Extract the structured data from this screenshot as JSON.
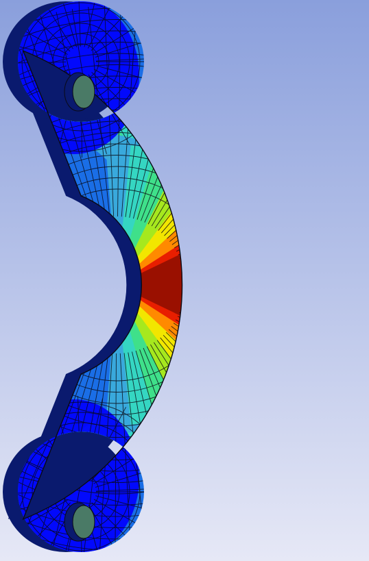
{
  "viewport": {
    "background_top": "#8a9fdc",
    "background_bottom": "#e6e8f6"
  },
  "model": {
    "part": "c-shaped-clamp",
    "mesh": "quad-mesh",
    "edge_color": "#0a0a14",
    "side_face_color": "#0a1a6e",
    "hole_wall_color": "#4a7a66",
    "contour_colors": [
      "#0000ff",
      "#1a6ee6",
      "#39a9dc",
      "#35d6c2",
      "#3fe08a",
      "#a6e81e",
      "#f2e600",
      "#ff8a00",
      "#e81e00",
      "#9a1000"
    ],
    "icons": [
      "mounting-hole-top-icon",
      "mounting-hole-bottom-icon"
    ]
  }
}
